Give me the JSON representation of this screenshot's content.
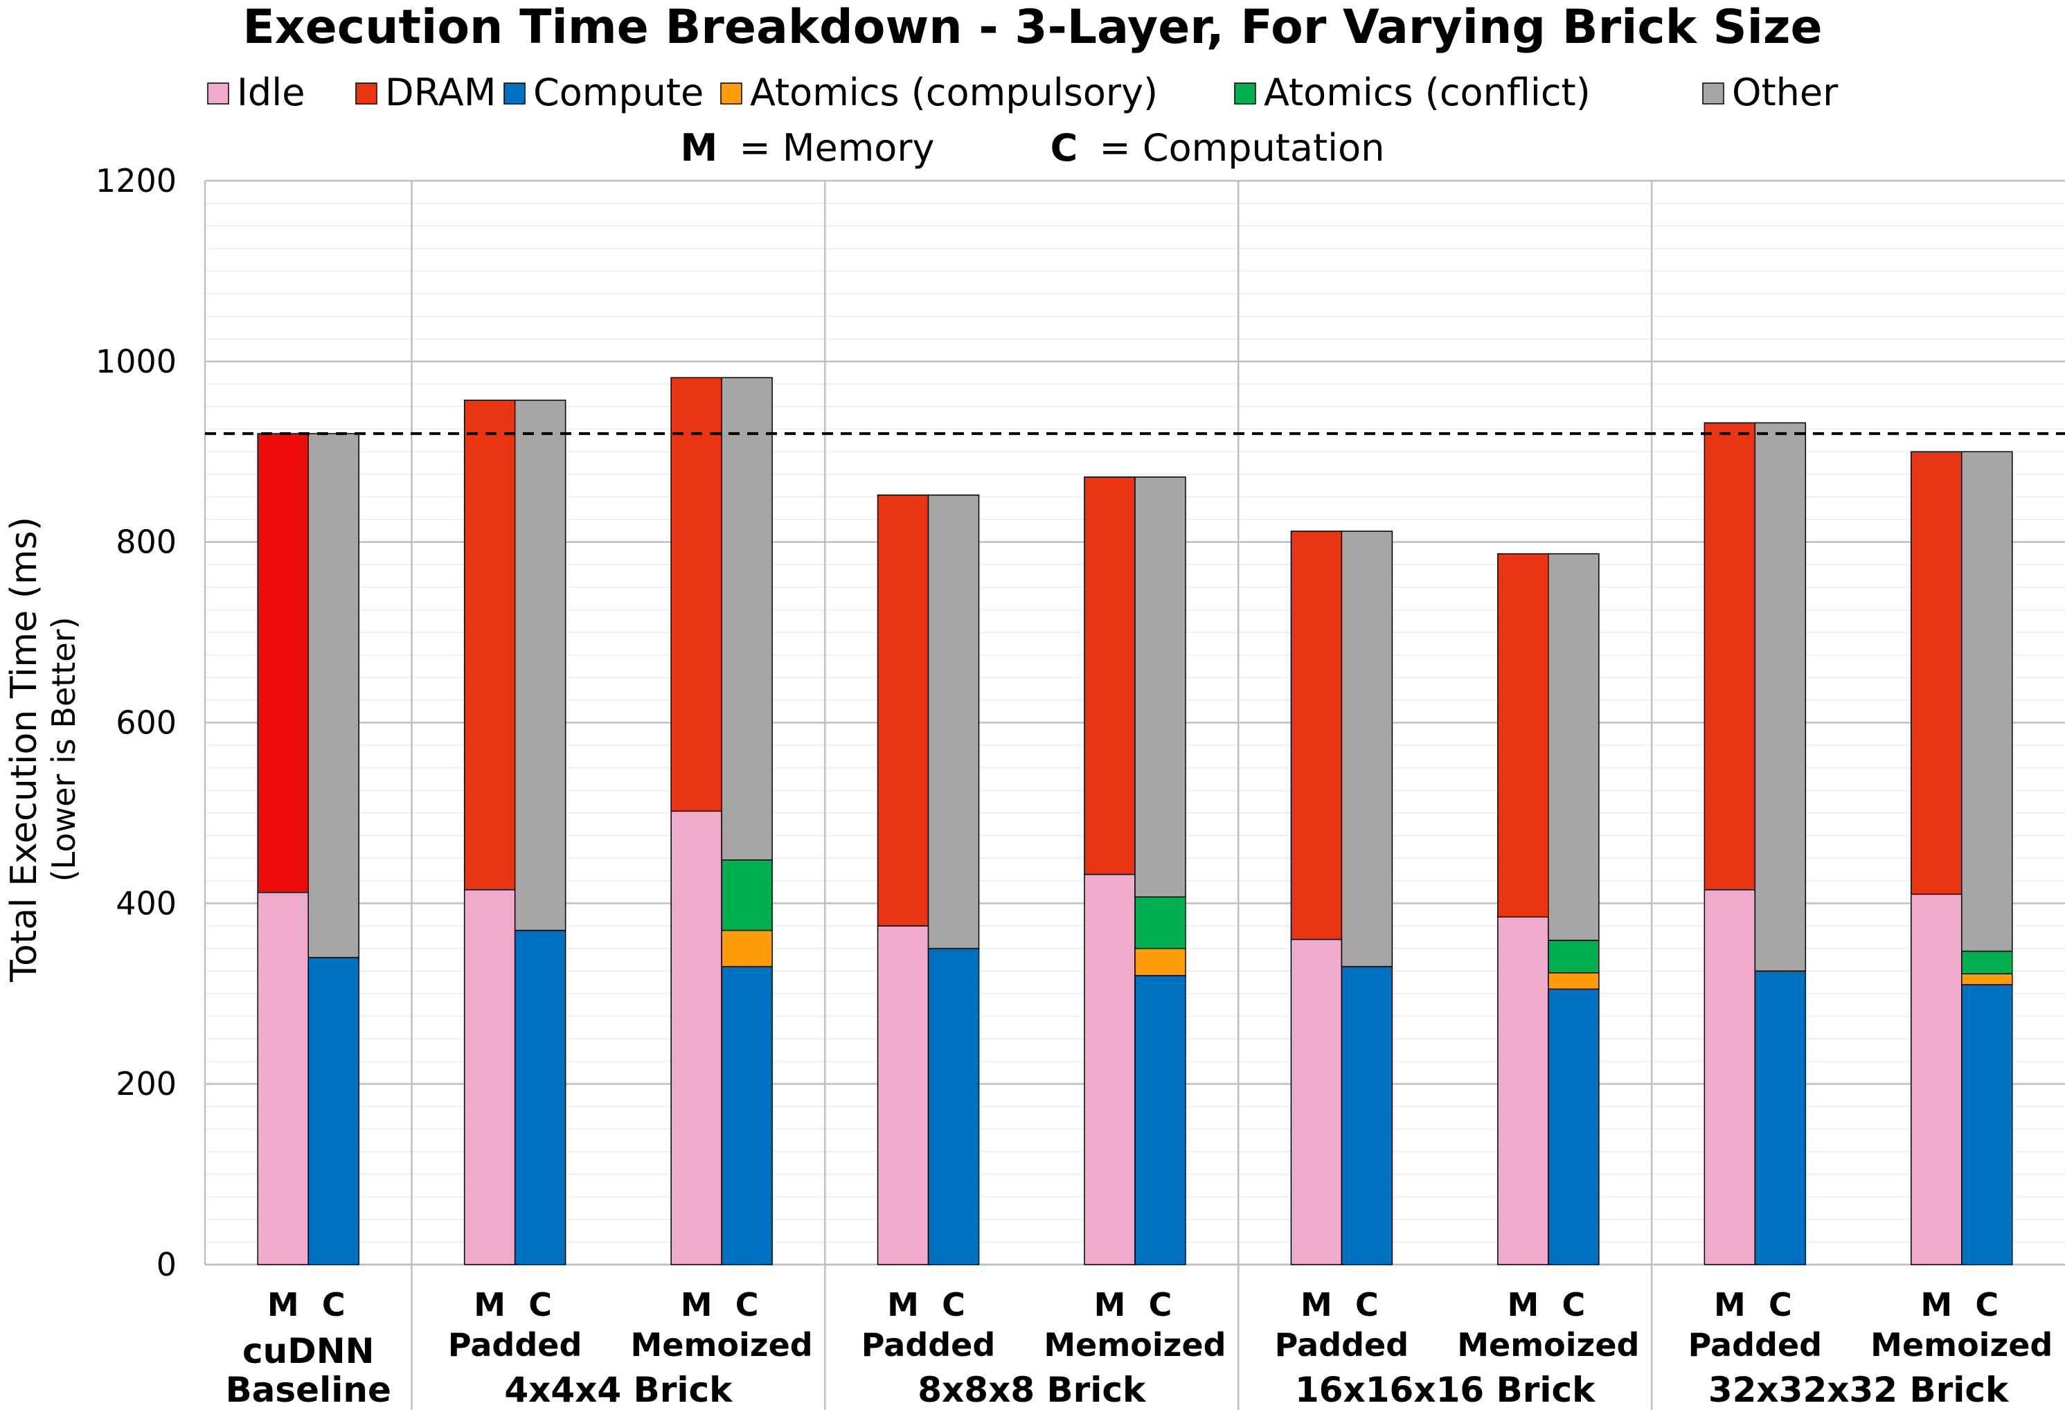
{
  "chart_data": {
    "type": "bar",
    "title": "Execution Time Breakdown - 3-Layer, For Varying Brick Size",
    "legend_position": "top",
    "legend_note": {
      "memory_key": "M",
      "memory_text": "= Memory",
      "computation_key": "C",
      "computation_text": "= Computation"
    },
    "ylabel": "Total Execution Time (ms)",
    "ylabel2": "(Lower is Better)",
    "ylim": [
      0,
      1200
    ],
    "yticks": [
      0,
      200,
      400,
      600,
      800,
      1000,
      1200
    ],
    "grid": true,
    "reference_line": 920,
    "series": [
      {
        "name": "Idle",
        "color": "#efabcc"
      },
      {
        "name": "DRAM",
        "color": "#ea3512"
      },
      {
        "name": "Compute",
        "color": "#0070c0"
      },
      {
        "name": "Atomics (compulsory)",
        "color": "#ff9c0b"
      },
      {
        "name": "Atomics (conflict)",
        "color": "#00b050"
      },
      {
        "name": "Other",
        "color": "#a6a6a6"
      }
    ],
    "groups": [
      {
        "label": "cuDNN\nBaseline",
        "subgroups": [
          {
            "label": "",
            "memory": {
              "Idle": 412,
              "DRAM": 508
            },
            "computation": {
              "Compute": 340,
              "Other": 580
            }
          }
        ]
      },
      {
        "label": "4x4x4 Brick",
        "subgroups": [
          {
            "label": "Padded",
            "memory": {
              "Idle": 415,
              "DRAM": 542
            },
            "computation": {
              "Compute": 370,
              "Other": 587
            }
          },
          {
            "label": "Memoized",
            "memory": {
              "Idle": 502,
              "DRAM": 480
            },
            "computation": {
              "Compute": 330,
              "Atomics (compulsory)": 40,
              "Atomics (conflict)": 78,
              "Other": 534
            }
          }
        ]
      },
      {
        "label": "8x8x8 Brick",
        "subgroups": [
          {
            "label": "Padded",
            "memory": {
              "Idle": 375,
              "DRAM": 477
            },
            "computation": {
              "Compute": 350,
              "Other": 502
            }
          },
          {
            "label": "Memoized",
            "memory": {
              "Idle": 432,
              "DRAM": 440
            },
            "computation": {
              "Compute": 320,
              "Atomics (compulsory)": 30,
              "Atomics (conflict)": 57,
              "Other": 465
            }
          }
        ]
      },
      {
        "label": "16x16x16 Brick",
        "subgroups": [
          {
            "label": "Padded",
            "memory": {
              "Idle": 360,
              "DRAM": 452
            },
            "computation": {
              "Compute": 330,
              "Other": 482
            }
          },
          {
            "label": "Memoized",
            "memory": {
              "Idle": 385,
              "DRAM": 402
            },
            "computation": {
              "Compute": 305,
              "Atomics (compulsory)": 18,
              "Atomics (conflict)": 36,
              "Other": 428
            }
          }
        ]
      },
      {
        "label": "32x32x32 Brick",
        "subgroups": [
          {
            "label": "Padded",
            "memory": {
              "Idle": 415,
              "DRAM": 517
            },
            "computation": {
              "Compute": 325,
              "Other": 607
            }
          },
          {
            "label": "Memoized",
            "memory": {
              "Idle": 410,
              "DRAM": 490
            },
            "computation": {
              "Compute": 310,
              "Atomics (compulsory)": 12,
              "Atomics (conflict)": 25,
              "Other": 553
            }
          }
        ]
      }
    ]
  }
}
